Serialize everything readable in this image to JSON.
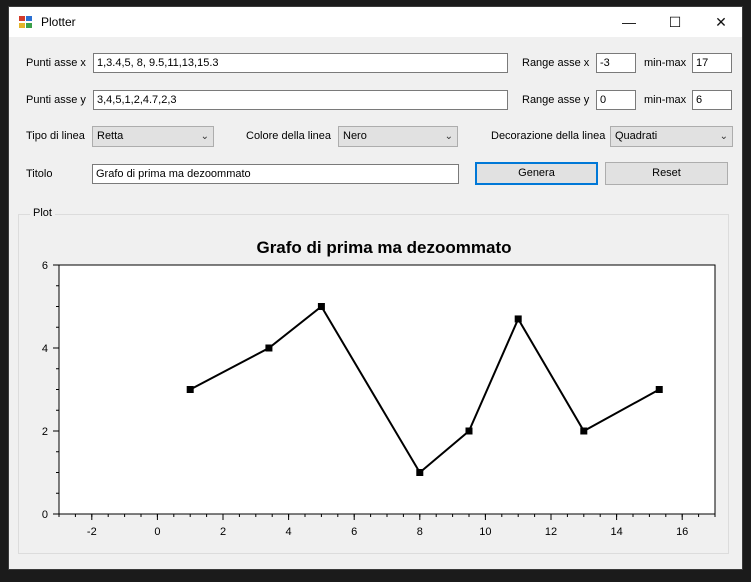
{
  "window": {
    "title": "Plotter",
    "controls": {
      "minimize": "—",
      "maximize": "☐",
      "close": "✕"
    }
  },
  "form": {
    "x_points_label": "Punti asse x",
    "x_points_value": "1,3.4,5, 8, 9.5,11,13,15.3",
    "y_points_label": "Punti asse y",
    "y_points_value": "3,4,5,1,2,4.7,2,3",
    "x_range_label": "Range asse x",
    "x_range_min": "-3",
    "x_minmax_label": "min-max",
    "x_range_max": "17",
    "y_range_label": "Range asse y",
    "y_range_min": "0",
    "y_minmax_label": "min-max",
    "y_range_max": "6",
    "line_type_label": "Tipo di linea",
    "line_type_value": "Retta",
    "line_color_label": "Colore della linea",
    "line_color_value": "Nero",
    "line_decoration_label": "Decorazione della linea",
    "line_decoration_value": "Quadrati",
    "title_label": "Titolo",
    "title_value": "Grafo di prima ma dezoommato",
    "generate_label": "Genera",
    "reset_label": "Reset"
  },
  "plot_group_label": "Plot",
  "chart_data": {
    "type": "line",
    "title": "Grafo di prima ma dezoommato",
    "x": [
      1,
      3.4,
      5,
      8,
      9.5,
      11,
      13,
      15.3
    ],
    "y": [
      3,
      4,
      5,
      1,
      2,
      4.7,
      2,
      3
    ],
    "xlim": [
      -3,
      17
    ],
    "ylim": [
      0,
      6
    ],
    "x_ticks": [
      -2,
      0,
      2,
      4,
      6,
      8,
      10,
      12,
      14,
      16
    ],
    "y_ticks": [
      0,
      2,
      4,
      6
    ],
    "line_color": "#000000",
    "marker": "square",
    "grid": false
  }
}
